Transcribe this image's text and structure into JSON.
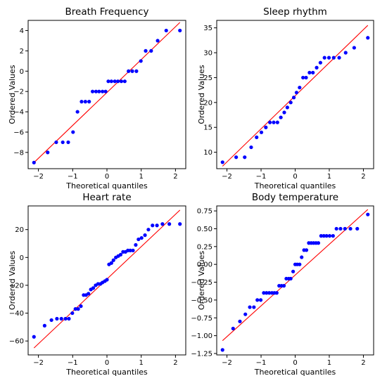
{
  "colors": {
    "points": "#0000ff",
    "fit_line": "#ff0000",
    "axes": "#000000"
  },
  "chart_data": [
    {
      "type": "scatter",
      "title": "Breath Frequency",
      "xlabel": "Theoretical quantiles",
      "ylabel": "Ordered Values",
      "xlim": [
        -2.3,
        2.3
      ],
      "ylim": [
        -9.6,
        5.0
      ],
      "xticks": [
        -2,
        -1,
        0,
        1,
        2
      ],
      "yticks": [
        -8,
        -6,
        -4,
        -2,
        0,
        2,
        4
      ],
      "fit_line": {
        "x": [
          -2.13,
          2.13
        ],
        "y": [
          -9.0,
          4.8
        ]
      },
      "x": [
        -2.13,
        -1.73,
        -1.48,
        -1.29,
        -1.13,
        -0.99,
        -0.86,
        -0.74,
        -0.63,
        -0.52,
        -0.42,
        -0.32,
        -0.23,
        -0.13,
        -0.04,
        0.04,
        0.13,
        0.23,
        0.32,
        0.42,
        0.52,
        0.63,
        0.74,
        0.86,
        0.99,
        1.13,
        1.29,
        1.48,
        1.73,
        2.13
      ],
      "y": [
        -9,
        -8,
        -7,
        -7,
        -7,
        -6,
        -4,
        -3,
        -3,
        -3,
        -2,
        -2,
        -2,
        -2,
        -2,
        -1,
        -1,
        -1,
        -1,
        -1,
        -1,
        0,
        0,
        0,
        1,
        2,
        2,
        3,
        4,
        4
      ]
    },
    {
      "type": "scatter",
      "title": "Sleep rhythm",
      "xlabel": "Theoretical quantiles",
      "ylabel": "Ordered Values",
      "xlim": [
        -2.3,
        2.3
      ],
      "ylim": [
        6.7,
        36.5
      ],
      "xticks": [
        -2,
        -1,
        0,
        1,
        2
      ],
      "yticks": [
        10,
        15,
        20,
        25,
        30,
        35
      ],
      "fit_line": {
        "x": [
          -2.13,
          2.13
        ],
        "y": [
          7.2,
          35.5
        ]
      },
      "x": [
        -2.13,
        -1.73,
        -1.48,
        -1.29,
        -1.13,
        -0.99,
        -0.86,
        -0.74,
        -0.63,
        -0.52,
        -0.42,
        -0.32,
        -0.23,
        -0.13,
        -0.04,
        0.04,
        0.13,
        0.23,
        0.32,
        0.42,
        0.52,
        0.63,
        0.74,
        0.86,
        0.99,
        1.13,
        1.29,
        1.48,
        1.73,
        2.13
      ],
      "y": [
        8,
        9,
        9,
        11,
        13,
        14,
        15,
        16,
        16,
        16,
        17,
        18,
        19,
        20,
        21,
        22,
        23,
        25,
        25,
        26,
        26,
        27,
        28,
        29,
        29,
        29,
        29,
        30,
        31,
        33
      ]
    },
    {
      "type": "scatter",
      "title": "Heart rate",
      "xlabel": "Theoretical quantiles",
      "ylabel": "Ordered Values",
      "xlim": [
        -2.3,
        2.3
      ],
      "ylim": [
        -70,
        37
      ],
      "xticks": [
        -2,
        -1,
        0,
        1,
        2
      ],
      "yticks": [
        -60,
        -40,
        -20,
        0,
        20
      ],
      "fit_line": {
        "x": [
          -2.13,
          2.13
        ],
        "y": [
          -65,
          34
        ]
      },
      "x": [
        -2.13,
        -1.82,
        -1.62,
        -1.46,
        -1.33,
        -1.21,
        -1.11,
        -1.01,
        -0.92,
        -0.84,
        -0.76,
        -0.68,
        -0.61,
        -0.54,
        -0.47,
        -0.4,
        -0.33,
        -0.26,
        -0.19,
        -0.13,
        -0.06,
        0.0,
        0.06,
        0.13,
        0.19,
        0.26,
        0.33,
        0.4,
        0.47,
        0.54,
        0.61,
        0.68,
        0.76,
        0.84,
        0.92,
        1.01,
        1.11,
        1.21,
        1.33,
        1.46,
        1.62,
        1.82,
        2.13
      ],
      "y": [
        -57,
        -49,
        -45,
        -44,
        -44,
        -44,
        -44,
        -40,
        -37,
        -37,
        -35,
        -27,
        -27,
        -26,
        -23,
        -22,
        -20,
        -19,
        -19,
        -18,
        -17,
        -16,
        -5,
        -4,
        -2,
        0,
        1,
        2,
        4,
        4,
        5,
        5,
        5,
        9,
        13,
        14,
        16,
        20,
        23,
        23,
        24,
        24,
        24
      ]
    },
    {
      "type": "scatter",
      "title": "Body temperature",
      "xlabel": "Theoretical quantiles",
      "ylabel": "Ordered Values",
      "xlim": [
        -2.3,
        2.3
      ],
      "ylim": [
        -1.27,
        0.82
      ],
      "xticks": [
        -2,
        -1,
        0,
        1,
        2
      ],
      "yticks": [
        -1.25,
        -1.0,
        -0.75,
        -0.5,
        -0.25,
        0.0,
        0.25,
        0.5,
        0.75
      ],
      "fit_line": {
        "x": [
          -2.13,
          2.13
        ],
        "y": [
          -1.07,
          0.77
        ]
      },
      "x": [
        -2.13,
        -1.82,
        -1.62,
        -1.46,
        -1.33,
        -1.21,
        -1.11,
        -1.01,
        -0.92,
        -0.84,
        -0.76,
        -0.68,
        -0.61,
        -0.54,
        -0.47,
        -0.4,
        -0.33,
        -0.26,
        -0.19,
        -0.13,
        -0.06,
        0.0,
        0.06,
        0.13,
        0.19,
        0.26,
        0.33,
        0.4,
        0.47,
        0.54,
        0.61,
        0.68,
        0.76,
        0.84,
        0.92,
        1.01,
        1.11,
        1.21,
        1.33,
        1.46,
        1.62,
        1.82,
        2.13
      ],
      "y": [
        -1.2,
        -0.9,
        -0.8,
        -0.7,
        -0.6,
        -0.6,
        -0.5,
        -0.5,
        -0.4,
        -0.4,
        -0.4,
        -0.4,
        -0.4,
        -0.4,
        -0.3,
        -0.3,
        -0.3,
        -0.2,
        -0.2,
        -0.2,
        -0.1,
        0.0,
        0.0,
        0.0,
        0.1,
        0.2,
        0.2,
        0.3,
        0.3,
        0.3,
        0.3,
        0.3,
        0.4,
        0.4,
        0.4,
        0.4,
        0.4,
        0.5,
        0.5,
        0.5,
        0.5,
        0.5,
        0.7
      ]
    }
  ]
}
